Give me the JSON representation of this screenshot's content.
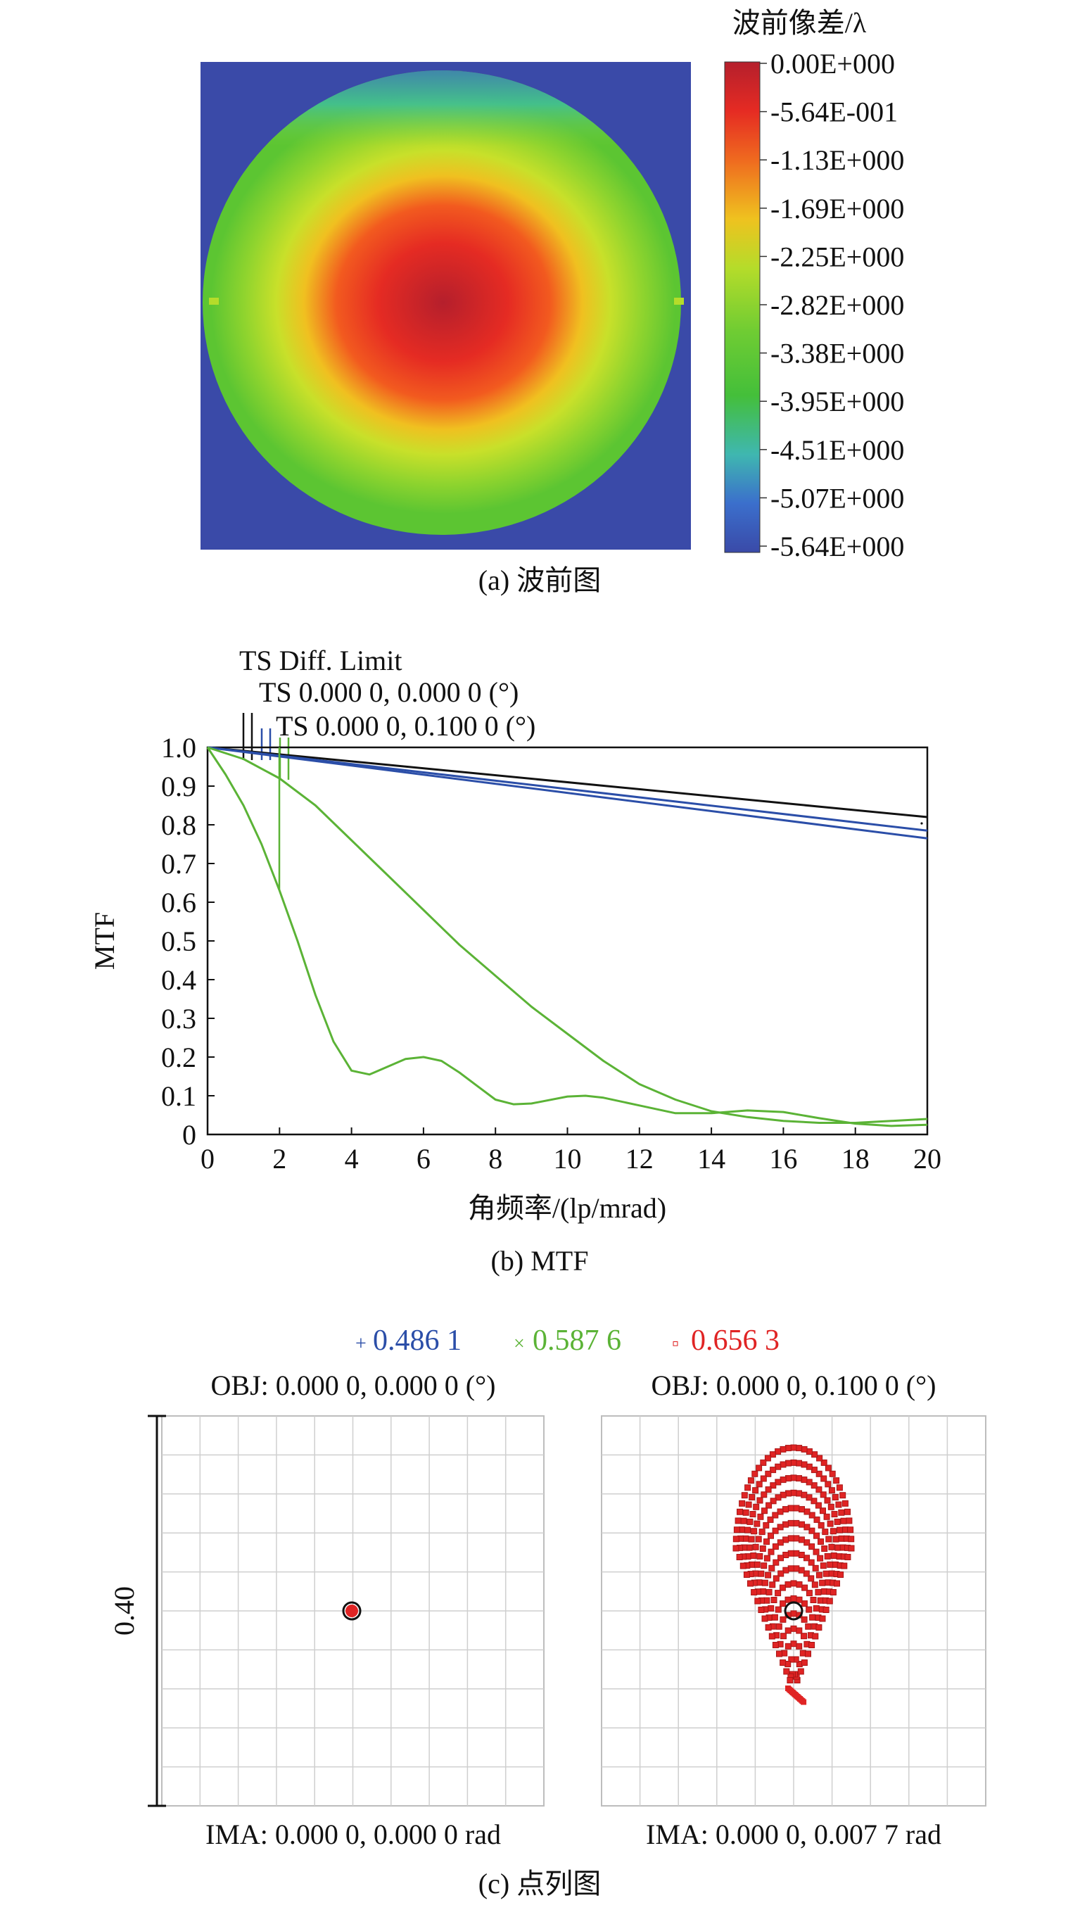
{
  "panel_a": {
    "colorbar_title": "波前像差/λ",
    "colorbar_ticks": [
      "0.00E+000",
      "-5.64E-001",
      "-1.13E+000",
      "-1.69E+000",
      "-2.25E+000",
      "-2.82E+000",
      "-3.38E+000",
      "-3.95E+000",
      "-4.51E+000",
      "-5.07E+000",
      "-5.64E+000"
    ],
    "caption": "(a) 波前图"
  },
  "panel_b": {
    "legend": [
      "TS Diff. Limit",
      "TS 0.000 0, 0.000 0 (°)",
      "TS 0.000 0, 0.100 0 (°)"
    ],
    "caption": "(b) MTF"
  },
  "panel_c": {
    "legend": [
      {
        "marker": "+",
        "label": "0.486 1",
        "color": "#2b4ea8"
      },
      {
        "marker": "×",
        "label": "0.587 6",
        "color": "#5bb336"
      },
      {
        "marker": "▫",
        "label": "0.656 3",
        "color": "#e02424"
      }
    ],
    "left_title": "OBJ: 0.000 0, 0.000 0 (°)",
    "right_title": "OBJ: 0.000 0, 0.100 0 (°)",
    "left_footer": "IMA: 0.000 0, 0.000 0 rad",
    "right_footer": "IMA: 0.000 0, 0.007 7 rad",
    "scale_label": "0.40",
    "caption": "(c) 点列图"
  },
  "chart_data": [
    {
      "type": "heatmap",
      "title": "",
      "colorbar_label": "波前像差/λ",
      "colorbar_range": [
        -5.64,
        0.0
      ],
      "colors": {
        "max": "#b01e2a",
        "high": "#e52b23",
        "mid": "#a6d92a",
        "low": "#3fbf3a",
        "min": "#3a4aa8",
        "background": "#3a4aa8"
      }
    },
    {
      "type": "line",
      "xlabel": "角频率/(lp/mrad)",
      "ylabel": "MTF",
      "xlim": [
        0,
        20
      ],
      "ylim": [
        0,
        1
      ],
      "xticks": [
        "0",
        "2",
        "4",
        "6",
        "8",
        "10",
        "12",
        "14",
        "16",
        "18",
        "20"
      ],
      "yticks": [
        "0",
        "0.1",
        "0.2",
        "0.3",
        "0.4",
        "0.5",
        "0.6",
        "0.7",
        "0.8",
        "0.9",
        "1.0"
      ],
      "series": [
        {
          "name": "TS Diff. Limit",
          "color": "#111111",
          "x": [
            0,
            20
          ],
          "y": [
            1.0,
            0.82
          ]
        },
        {
          "name": "TS 0.000 0, 0.000 0 (°)",
          "color": "#2b4ea8",
          "x": [
            0,
            20
          ],
          "y": [
            1.0,
            0.785
          ]
        },
        {
          "name": "TS 0.000 0, 0.000 0 (°)",
          "color": "#2b4ea8",
          "x": [
            0,
            20
          ],
          "y": [
            1.0,
            0.765
          ]
        },
        {
          "name": "TS 0.000 0, 0.100 0 (°)",
          "color": "#5bb336",
          "x": [
            0,
            1,
            2,
            3,
            4,
            5,
            6,
            7,
            8,
            9,
            10,
            11,
            12,
            13,
            14,
            15,
            16,
            17,
            18,
            19,
            20
          ],
          "y": [
            1.0,
            0.97,
            0.92,
            0.85,
            0.76,
            0.67,
            0.58,
            0.49,
            0.41,
            0.33,
            0.26,
            0.19,
            0.13,
            0.09,
            0.06,
            0.045,
            0.035,
            0.03,
            0.03,
            0.035,
            0.04
          ]
        },
        {
          "name": "TS 0.000 0, 0.100 0 (°)",
          "color": "#5bb336",
          "x": [
            0,
            0.5,
            1,
            1.5,
            2,
            2.5,
            3,
            3.5,
            4,
            4.5,
            5,
            5.5,
            6,
            6.5,
            7,
            7.5,
            8,
            8.5,
            9,
            10,
            10.5,
            11,
            12,
            13,
            14,
            15,
            16,
            17,
            18,
            19,
            20
          ],
          "y": [
            1.0,
            0.93,
            0.85,
            0.75,
            0.63,
            0.5,
            0.36,
            0.24,
            0.165,
            0.155,
            0.175,
            0.195,
            0.2,
            0.19,
            0.16,
            0.125,
            0.09,
            0.078,
            0.08,
            0.098,
            0.1,
            0.095,
            0.075,
            0.055,
            0.055,
            0.062,
            0.058,
            0.042,
            0.028,
            0.022,
            0.025
          ]
        }
      ]
    },
    {
      "type": "scatter",
      "title": "OBJ: 0.000 0, 0.000 0 (°)",
      "scale": "0.40",
      "series": [
        {
          "name": "0.656 3",
          "color": "#e02424",
          "x": [
            0
          ],
          "y": [
            0
          ]
        }
      ]
    },
    {
      "type": "scatter",
      "title": "OBJ: 0.000 0, 0.100 0 (°)",
      "scale": "0.40",
      "series": [
        {
          "name": "0.656 3",
          "color": "#e02424"
        }
      ]
    }
  ]
}
